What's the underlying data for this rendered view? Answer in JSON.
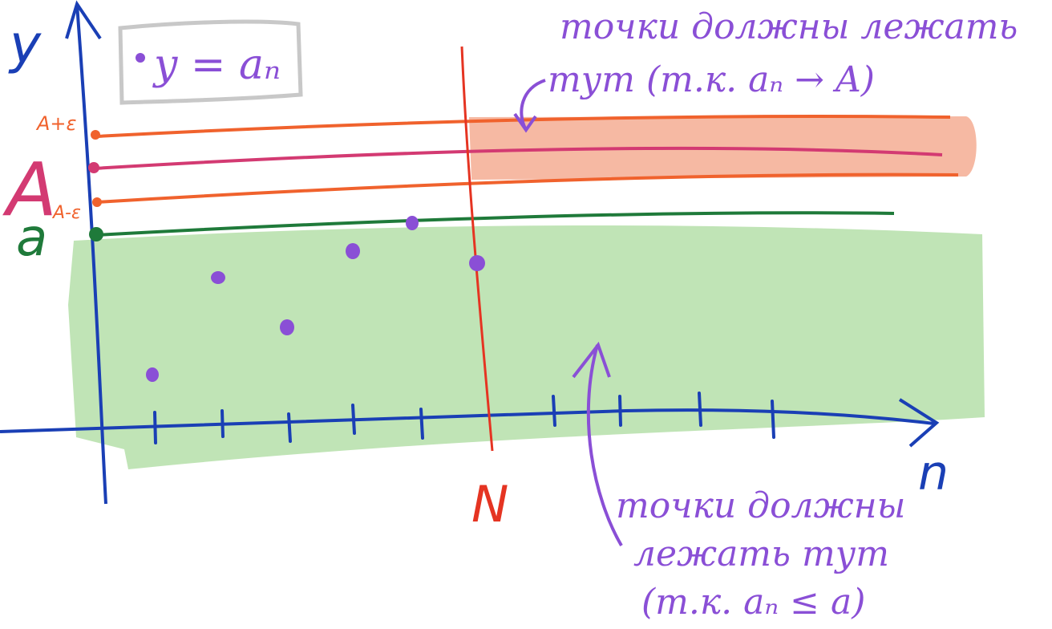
{
  "labels": {
    "y_axis": "y",
    "x_axis": "n",
    "N": "N",
    "A": "A",
    "A_plus": "A+ε",
    "A_minus": "A-ε",
    "a": "a",
    "legend": "y = aₙ",
    "note_top_line1": "точки должны лежать",
    "note_top_line2": "тут (т.к. aₙ → A)",
    "note_bottom_line1": "точки должны",
    "note_bottom_line2": "лежать тут",
    "note_bottom_line3": "(т.к. aₙ ≤ a)"
  },
  "colors": {
    "axis": "#1a3fb5",
    "orange": "#f0622d",
    "magenta": "#d33a72",
    "green": "#1f7a3a",
    "green_fill": "#bde3b2",
    "orange_fill": "#f6b9a3",
    "red": "#e53422",
    "purple": "#8a4fd6",
    "gray": "#c8c8c8"
  }
}
